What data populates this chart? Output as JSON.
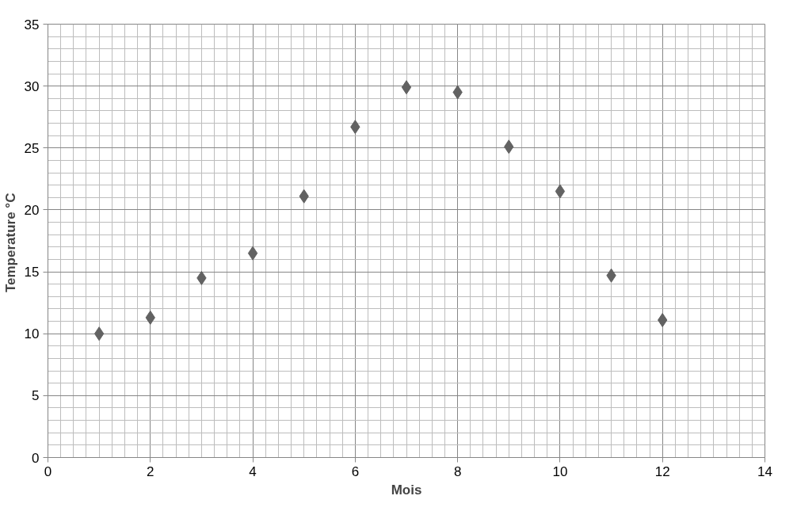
{
  "chart_data": {
    "type": "scatter",
    "xlabel": "Mois",
    "ylabel": "Temperature  °C",
    "x": [
      1,
      2,
      3,
      4,
      5,
      6,
      7,
      8,
      9,
      10,
      11,
      12
    ],
    "series": [
      {
        "color": "#626262",
        "values": [
          10.0,
          11.3,
          14.5,
          16.5,
          21.1,
          26.7,
          29.9,
          29.5,
          25.1,
          21.5,
          14.7,
          11.1
        ]
      }
    ],
    "xlim": [
      0,
      14
    ],
    "xticks": [
      0,
      2,
      4,
      6,
      8,
      10,
      12,
      14
    ],
    "ylim": [
      0,
      35
    ],
    "yticks": [
      0,
      5,
      10,
      15,
      20,
      25,
      30,
      35
    ],
    "grid": true,
    "marker": "diamond"
  }
}
